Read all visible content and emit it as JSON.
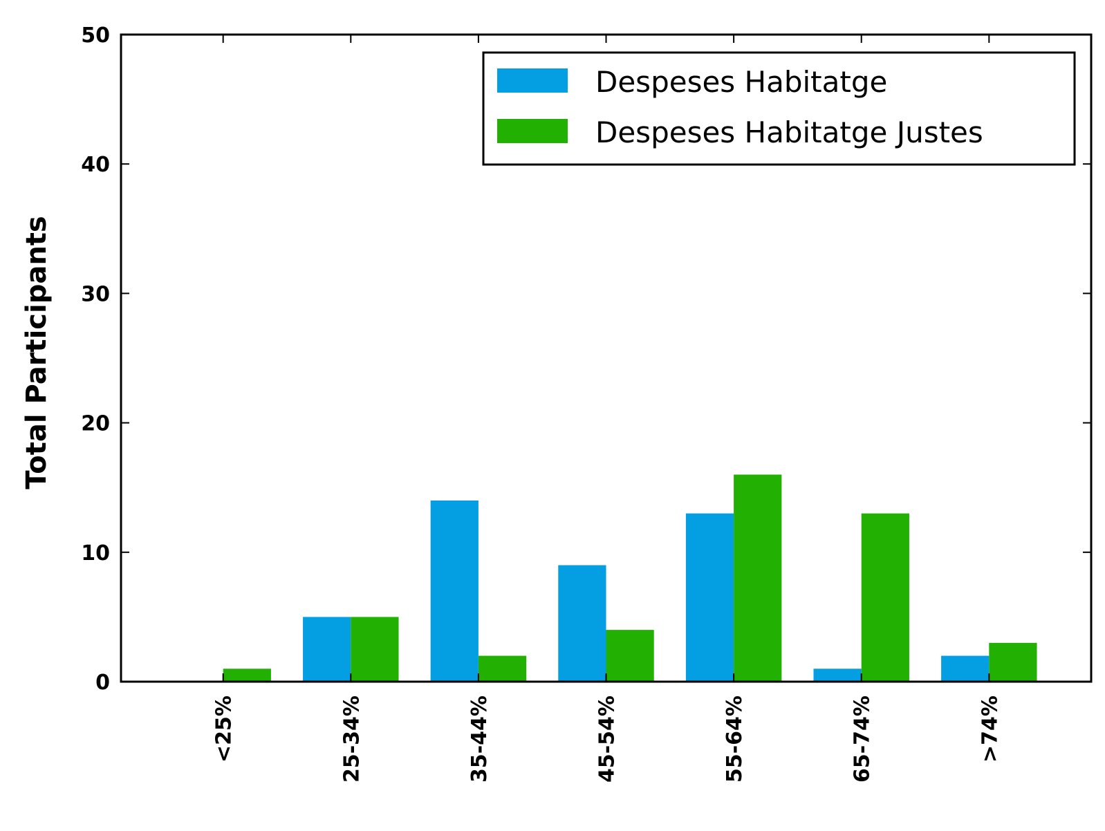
{
  "chart_data": {
    "type": "bar",
    "title": "",
    "xlabel": "",
    "ylabel": "Total Participants",
    "categories": [
      "<25%",
      "25-34%",
      "35-44%",
      "45-54%",
      "55-64%",
      "65-74%",
      ">74%"
    ],
    "series": [
      {
        "name": "Despeses Habitatge",
        "color": "#039fe2",
        "values": [
          0,
          5,
          14,
          9,
          13,
          1,
          2
        ]
      },
      {
        "name": "Despeses Habitatge Justes",
        "color": "#22b003",
        "values": [
          1,
          5,
          2,
          4,
          16,
          13,
          3
        ]
      }
    ],
    "ylim": [
      0,
      50
    ],
    "yticks": [
      "0",
      "10",
      "20",
      "30",
      "40",
      "50"
    ],
    "grid": false,
    "legend_position": "top-right"
  }
}
